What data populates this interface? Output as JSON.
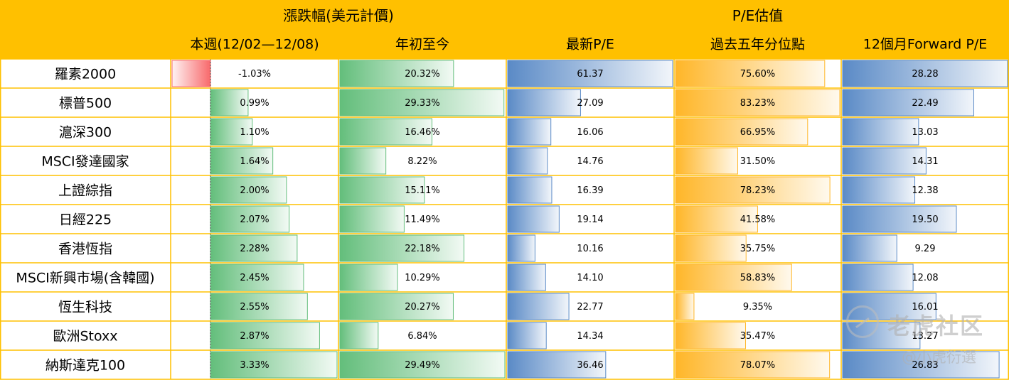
{
  "chart_data": {
    "type": "table",
    "group_headers": [
      {
        "label": "漲跌幅(美元計價)",
        "span": [
          0,
          1
        ]
      },
      {
        "label": "P/E估值",
        "span": [
          2,
          4
        ]
      }
    ],
    "columns": [
      {
        "label": "本週(12/02—12/08)",
        "scheme": "change",
        "max": 3.33
      },
      {
        "label": "年初至今",
        "scheme": "green",
        "max": 29.49
      },
      {
        "label": "最新P/E",
        "scheme": "blue",
        "max": 61.37
      },
      {
        "label": "過去五年分位點",
        "scheme": "orange",
        "max": 83.23
      },
      {
        "label": "12個月Forward P/E",
        "scheme": "blue",
        "max": 28.28
      }
    ],
    "rows": [
      {
        "name": "羅素2000",
        "values": [
          -1.03,
          20.32,
          61.37,
          75.6,
          28.28
        ],
        "display": [
          "-1.03%",
          "20.32%",
          "61.37",
          "75.60%",
          "28.28"
        ]
      },
      {
        "name": "標普500",
        "values": [
          0.99,
          29.33,
          27.09,
          83.23,
          22.49
        ],
        "display": [
          "0.99%",
          "29.33%",
          "27.09",
          "83.23%",
          "22.49"
        ]
      },
      {
        "name": "滬深300",
        "values": [
          1.1,
          16.46,
          16.06,
          66.95,
          13.03
        ],
        "display": [
          "1.10%",
          "16.46%",
          "16.06",
          "66.95%",
          "13.03"
        ]
      },
      {
        "name": "MSCI發達國家",
        "values": [
          1.64,
          8.22,
          14.76,
          31.5,
          14.31
        ],
        "display": [
          "1.64%",
          "8.22%",
          "14.76",
          "31.50%",
          "14.31"
        ]
      },
      {
        "name": "上證綜指",
        "values": [
          2.0,
          15.11,
          16.39,
          78.23,
          12.38
        ],
        "display": [
          "2.00%",
          "15.11%",
          "16.39",
          "78.23%",
          "12.38"
        ]
      },
      {
        "name": "日經225",
        "values": [
          2.07,
          11.49,
          19.14,
          41.58,
          19.5
        ],
        "display": [
          "2.07%",
          "11.49%",
          "19.14",
          "41.58%",
          "19.50"
        ]
      },
      {
        "name": "香港恆指",
        "values": [
          2.28,
          22.18,
          10.16,
          35.75,
          9.29
        ],
        "display": [
          "2.28%",
          "22.18%",
          "10.16",
          "35.75%",
          "9.29"
        ]
      },
      {
        "name": "MSCI新興市場(含韓國)",
        "values": [
          2.45,
          10.29,
          14.1,
          58.83,
          12.08
        ],
        "display": [
          "2.45%",
          "10.29%",
          "14.10",
          "58.83%",
          "12.08"
        ]
      },
      {
        "name": "恆生科技",
        "values": [
          2.55,
          20.27,
          22.77,
          9.35,
          16.01
        ],
        "display": [
          "2.55%",
          "20.27%",
          "22.77",
          "9.35%",
          "16.01"
        ]
      },
      {
        "name": "歐洲Stoxx",
        "values": [
          2.87,
          6.84,
          14.34,
          35.47,
          13.27
        ],
        "display": [
          "2.87%",
          "6.84%",
          "14.34",
          "35.47%",
          "13.27"
        ]
      },
      {
        "name": "納斯達克100",
        "values": [
          3.33,
          29.49,
          36.46,
          78.07,
          26.83
        ],
        "display": [
          "3.33%",
          "29.49%",
          "36.46",
          "78.07%",
          "26.83"
        ]
      }
    ],
    "colors": {
      "header_bg": "#FFC000",
      "grid": "#FFC000",
      "green": "#63BE7B",
      "blue": "#5A8AC6",
      "orange": "#FFB628",
      "red": "#F8696B"
    }
  },
  "watermark": {
    "main": "老虎社区",
    "sub": "@小虎衍選"
  }
}
